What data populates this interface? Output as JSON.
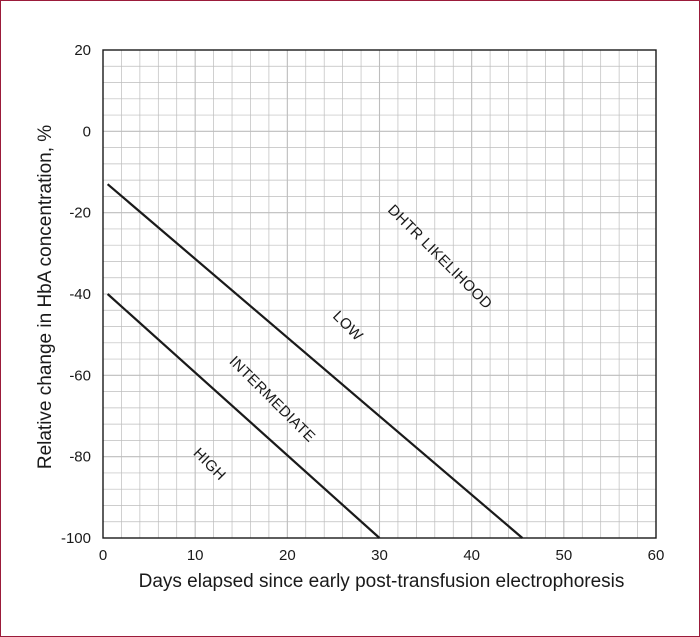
{
  "chart_data": {
    "type": "line",
    "title": "",
    "xlabel": "Days elapsed since early post-transfusion electrophoresis",
    "ylabel": "Relative change in HbA concentration, %",
    "xlim": [
      0,
      60
    ],
    "ylim": [
      -100,
      20
    ],
    "xticks": [
      0,
      10,
      20,
      30,
      40,
      50,
      60
    ],
    "yticks": [
      20,
      0,
      -20,
      -40,
      -60,
      -80,
      -100
    ],
    "grid": true,
    "series": [
      {
        "x": [
          0.5,
          45.5
        ],
        "y": [
          -13,
          -100
        ]
      },
      {
        "x": [
          0.5,
          30
        ],
        "y": [
          -40,
          -100
        ]
      }
    ],
    "annotations": [
      {
        "text": "DHTR LIKELIHOOD",
        "x": 36.5,
        "y": -31,
        "rotation": 45
      },
      {
        "text": "LOW",
        "x": 26.5,
        "y": -48,
        "rotation": 45
      },
      {
        "text": "INTERMEDIATE",
        "x": 18.3,
        "y": -66,
        "rotation": 45
      },
      {
        "text": "HIGH",
        "x": 11.5,
        "y": -82,
        "rotation": 45
      }
    ],
    "colors": {
      "grid": "#bdbdbd",
      "line": "#1a1a1a",
      "border": "#9b1b3a"
    }
  }
}
